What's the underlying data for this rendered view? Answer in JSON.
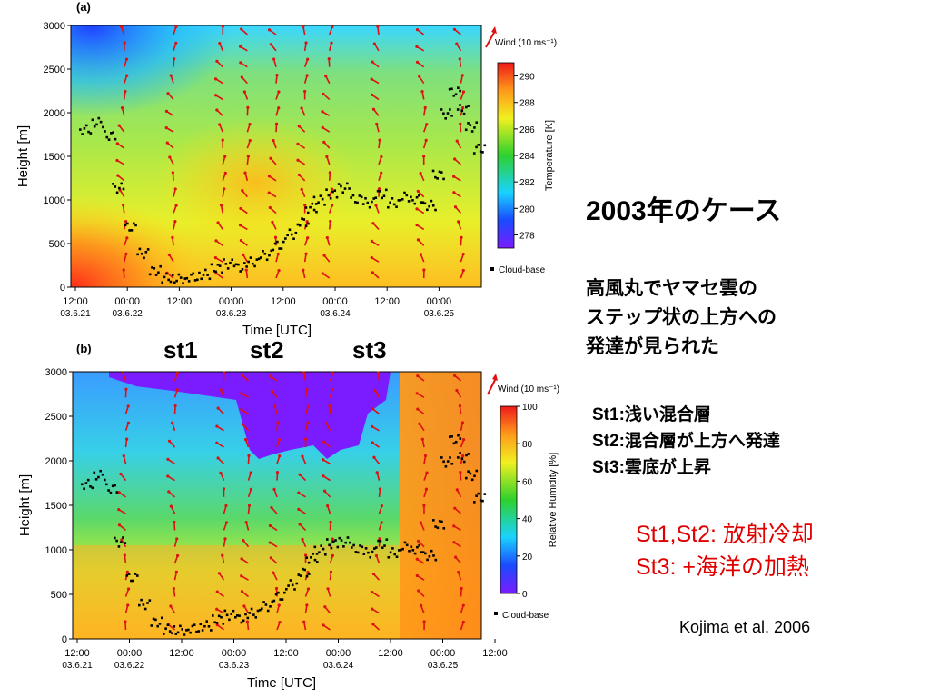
{
  "slide": {
    "title": "2003年のケース",
    "description": [
      "高風丸でヤマセ雲の",
      "ステップ状の上方への",
      "発達が見られた"
    ],
    "stages": [
      "St1:浅い混合層",
      "St2:混合層が上方へ発達",
      "St3:雲底が上昇"
    ],
    "mechanisms": [
      "St1,St2: 放射冷却",
      "St3: +海洋の加熱"
    ],
    "citation": "Kojima et al. 2006",
    "stage_markers": [
      "st1",
      "st2",
      "st3"
    ],
    "colors": {
      "mechanism_text": "#e00000",
      "wind_arrows": "#dd1111",
      "cloud_base": "#000000"
    }
  },
  "chart_data": [
    {
      "type": "heatmap",
      "panel_label": "(a)",
      "xlabel": "Time  [UTC]",
      "ylabel": "Height [m]",
      "x_ticks": [
        {
          "time": "12:00",
          "date": "03.6.21"
        },
        {
          "time": "00:00",
          "date": "03.6.22"
        },
        {
          "time": "12:00",
          "date": ""
        },
        {
          "time": "00:00",
          "date": "03.6.23"
        },
        {
          "time": "12:00",
          "date": ""
        },
        {
          "time": "00:00",
          "date": "03.6.24"
        },
        {
          "time": "12:00",
          "date": ""
        },
        {
          "time": "00:00",
          "date": "03.6.25"
        }
      ],
      "ylim": [
        0,
        3000
      ],
      "y_ticks": [
        "3000",
        "2500",
        "2000",
        "1500",
        "1000",
        "500",
        "0"
      ],
      "colorbar": {
        "label": "Temperature [K]",
        "ticks": [
          "290",
          "288",
          "286",
          "284",
          "282",
          "280",
          "278"
        ],
        "range": [
          277,
          291
        ]
      },
      "legend": {
        "wind": "Wind (10 ms⁻¹)",
        "cloud_base": "Cloud-base"
      },
      "cloud_base_series": [
        [
          0.02,
          1820
        ],
        [
          0.05,
          1900
        ],
        [
          0.08,
          1750
        ],
        [
          0.1,
          1150
        ],
        [
          0.13,
          700
        ],
        [
          0.16,
          400
        ],
        [
          0.19,
          200
        ],
        [
          0.22,
          120
        ],
        [
          0.25,
          110
        ],
        [
          0.28,
          130
        ],
        [
          0.31,
          160
        ],
        [
          0.34,
          230
        ],
        [
          0.37,
          280
        ],
        [
          0.4,
          240
        ],
        [
          0.43,
          300
        ],
        [
          0.46,
          380
        ],
        [
          0.49,
          490
        ],
        [
          0.52,
          620
        ],
        [
          0.55,
          760
        ],
        [
          0.57,
          920
        ],
        [
          0.59,
          1010
        ],
        [
          0.62,
          1080
        ],
        [
          0.65,
          1150
        ],
        [
          0.68,
          1020
        ],
        [
          0.71,
          980
        ],
        [
          0.74,
          1080
        ],
        [
          0.77,
          980
        ],
        [
          0.8,
          1050
        ],
        [
          0.83,
          1020
        ],
        [
          0.86,
          950
        ],
        [
          0.88,
          1300
        ],
        [
          0.9,
          2000
        ],
        [
          0.92,
          2250
        ],
        [
          0.94,
          2050
        ],
        [
          0.96,
          1850
        ],
        [
          0.98,
          1600
        ]
      ]
    },
    {
      "type": "heatmap",
      "panel_label": "(b)",
      "xlabel": "Time  [UTC]",
      "ylabel": "Height [m]",
      "x_ticks": [
        {
          "time": "12:00",
          "date": "03.6.21"
        },
        {
          "time": "00:00",
          "date": "03.6.22"
        },
        {
          "time": "12:00",
          "date": ""
        },
        {
          "time": "00:00",
          "date": "03.6.23"
        },
        {
          "time": "12:00",
          "date": ""
        },
        {
          "time": "00:00",
          "date": "03.6.24"
        },
        {
          "time": "12:00",
          "date": ""
        },
        {
          "time": "00:00",
          "date": "03.6.25"
        },
        {
          "time": "12:00",
          "date": ""
        }
      ],
      "ylim": [
        0,
        3000
      ],
      "y_ticks": [
        "3000",
        "2500",
        "2000",
        "1500",
        "1000",
        "500",
        "0"
      ],
      "colorbar": {
        "label": "Relative Humidity [%]",
        "ticks": [
          "100",
          "80",
          "60",
          "40",
          "20",
          "0"
        ],
        "range": [
          0,
          100
        ]
      },
      "legend": {
        "wind": "Wind (10 ms⁻¹)",
        "cloud_base": "Cloud-base"
      },
      "cloud_base_series": [
        [
          0.02,
          1750
        ],
        [
          0.05,
          1850
        ],
        [
          0.08,
          1700
        ],
        [
          0.1,
          1100
        ],
        [
          0.13,
          700
        ],
        [
          0.16,
          400
        ],
        [
          0.19,
          200
        ],
        [
          0.22,
          120
        ],
        [
          0.25,
          110
        ],
        [
          0.28,
          130
        ],
        [
          0.31,
          160
        ],
        [
          0.34,
          230
        ],
        [
          0.37,
          280
        ],
        [
          0.4,
          240
        ],
        [
          0.43,
          300
        ],
        [
          0.46,
          380
        ],
        [
          0.49,
          490
        ],
        [
          0.52,
          620
        ],
        [
          0.55,
          760
        ],
        [
          0.57,
          920
        ],
        [
          0.59,
          1010
        ],
        [
          0.62,
          1080
        ],
        [
          0.65,
          1100
        ],
        [
          0.68,
          1020
        ],
        [
          0.71,
          980
        ],
        [
          0.74,
          1080
        ],
        [
          0.77,
          980
        ],
        [
          0.8,
          1050
        ],
        [
          0.83,
          1020
        ],
        [
          0.86,
          950
        ],
        [
          0.88,
          1300
        ],
        [
          0.9,
          2000
        ],
        [
          0.92,
          2250
        ],
        [
          0.94,
          2050
        ],
        [
          0.96,
          1850
        ],
        [
          0.98,
          1600
        ]
      ]
    }
  ]
}
